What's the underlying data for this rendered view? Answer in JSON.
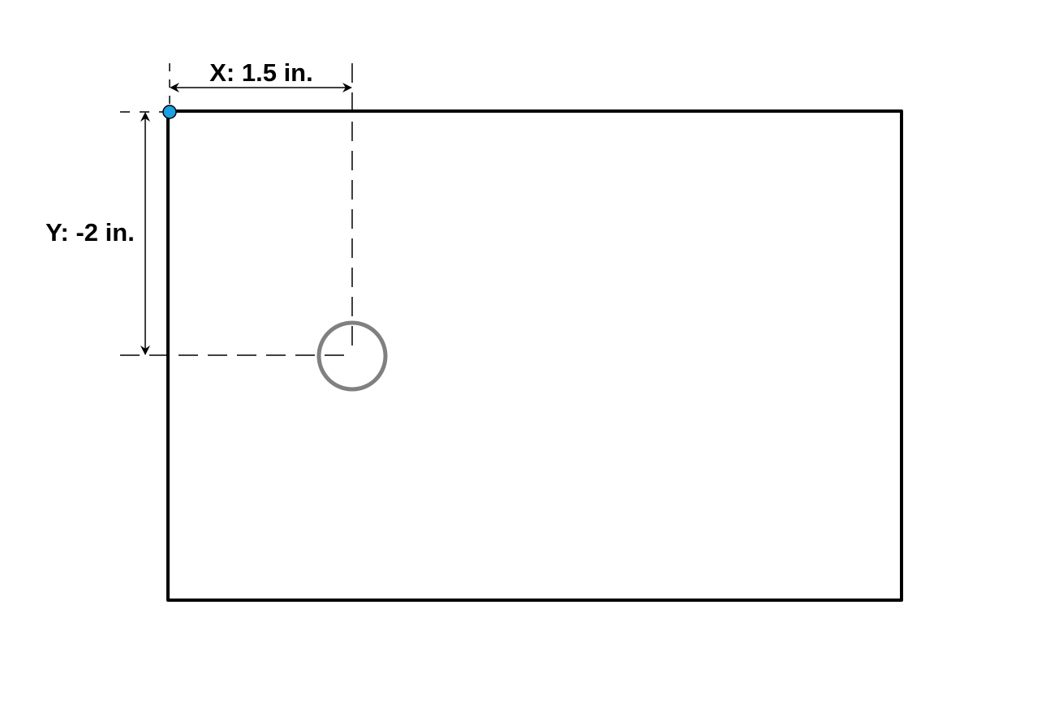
{
  "dimensions": {
    "x_label": "X: 1.5 in.",
    "y_label": "Y: -2 in."
  },
  "colors": {
    "plate_outline": "#000000",
    "origin_marker": "#1ba1e2",
    "hole_outline": "#808080",
    "dimension_lines": "#000000"
  }
}
